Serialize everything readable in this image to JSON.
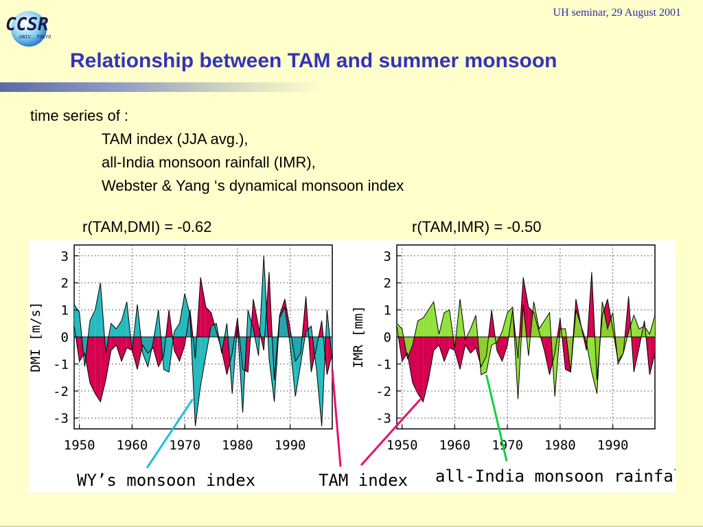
{
  "header": {
    "seminar": "UH seminar, 29 August 2001",
    "logo_text": "CCSR",
    "logo_sub": "UNIV. TOKYO"
  },
  "title": "Relationship between TAM and summer monsoon",
  "body": {
    "line1": "time series of :",
    "line2": "TAM index   (JJA avg.),",
    "line3": "all-India monsoon rainfall (IMR),",
    "line4": "Webster & Yang ‘s dynamical monsoon index"
  },
  "correlations": {
    "left": "r(TAM,DMI) = -0.62",
    "right": "r(TAM,IMR) = -0.50"
  },
  "colors": {
    "tam": "#d4004f",
    "dmi": "#14b4b8",
    "imr": "#88e02c",
    "tam_line": "#e8106a",
    "dmi_line": "#18c0dc",
    "imr_line": "#10d040",
    "title": "#3333bb"
  },
  "annotations": {
    "wy": "WY’s monsoon index",
    "tam": "TAM index",
    "imr": "all-India monsoon rainfall"
  },
  "chart_data": [
    {
      "type": "area",
      "title": "",
      "xlabel": "",
      "ylabel": "DMI [m/s]",
      "xlim": [
        1949,
        1998
      ],
      "ylim": [
        -3.4,
        3.4
      ],
      "xticks": [
        1950,
        1960,
        1970,
        1980,
        1990
      ],
      "yticks": [
        3,
        2,
        1,
        0,
        -1,
        -2,
        -3
      ],
      "grid": true,
      "x": [
        1949,
        1950,
        1951,
        1952,
        1953,
        1954,
        1955,
        1956,
        1957,
        1958,
        1959,
        1960,
        1961,
        1962,
        1963,
        1964,
        1965,
        1966,
        1967,
        1968,
        1969,
        1970,
        1971,
        1972,
        1973,
        1974,
        1975,
        1976,
        1977,
        1978,
        1979,
        1980,
        1981,
        1982,
        1983,
        1984,
        1985,
        1986,
        1987,
        1988,
        1989,
        1990,
        1991,
        1992,
        1993,
        1994,
        1995,
        1996,
        1997,
        1998
      ],
      "series": [
        {
          "name": "TAM index",
          "values": [
            0.4,
            -0.9,
            -0.6,
            -1.7,
            -2.1,
            -2.4,
            -1.6,
            -0.5,
            -0.3,
            -0.9,
            -0.4,
            -0.5,
            -1.2,
            -0.3,
            -0.6,
            -0.4,
            -1.1,
            -0.7,
            1.0,
            -0.5,
            -0.9,
            -0.3,
            1.0,
            -0.8,
            2.2,
            1.1,
            0.9,
            0.2,
            -0.5,
            -1.4,
            -0.6,
            0.7,
            -1.2,
            -1.3,
            1.4,
            0.4,
            -0.5,
            2.4,
            -1.6,
            0.8,
            1.4,
            0.3,
            -0.9,
            -0.6,
            1.5,
            -1.3,
            -0.4,
            0.6,
            -1.4,
            -0.6
          ]
        },
        {
          "name": "DMI",
          "values": [
            1.2,
            0.9,
            -1.1,
            0.6,
            1.0,
            2.0,
            -0.6,
            0.5,
            0.3,
            0.6,
            1.3,
            -0.5,
            1.2,
            -0.6,
            -1.1,
            -0.2,
            1.0,
            -1.2,
            -1.3,
            0.2,
            0.5,
            1.6,
            0.8,
            -3.3,
            -1.8,
            -0.7,
            0.4,
            0.5,
            -0.6,
            0.5,
            -2.1,
            0.4,
            -2.8,
            1.0,
            0.3,
            -0.7,
            3.0,
            -0.8,
            -2.4,
            0.7,
            1.1,
            -0.3,
            -2.2,
            -1.0,
            0.2,
            0.4,
            -1.2,
            -3.3,
            1.0,
            -0.9
          ]
        }
      ]
    },
    {
      "type": "area",
      "title": "",
      "xlabel": "",
      "ylabel": "IMR [mm]",
      "xlim": [
        1949,
        1998
      ],
      "ylim": [
        -3.4,
        3.4
      ],
      "xticks": [
        1950,
        1960,
        1970,
        1980,
        1990
      ],
      "yticks": [
        3,
        2,
        1,
        0,
        -1,
        -2,
        -3
      ],
      "grid": true,
      "x": [
        1949,
        1950,
        1951,
        1952,
        1953,
        1954,
        1955,
        1956,
        1957,
        1958,
        1959,
        1960,
        1961,
        1962,
        1963,
        1964,
        1965,
        1966,
        1967,
        1968,
        1969,
        1970,
        1971,
        1972,
        1973,
        1974,
        1975,
        1976,
        1977,
        1978,
        1979,
        1980,
        1981,
        1982,
        1983,
        1984,
        1985,
        1986,
        1987,
        1988,
        1989,
        1990,
        1991,
        1992,
        1993,
        1994,
        1995,
        1996,
        1997,
        1998
      ],
      "series": [
        {
          "name": "TAM index",
          "values": [
            0.4,
            -0.9,
            -0.6,
            -1.7,
            -2.1,
            -2.4,
            -1.6,
            -0.5,
            -0.3,
            -0.9,
            -0.4,
            -0.5,
            -1.2,
            -0.3,
            -0.6,
            -0.4,
            -1.1,
            -0.7,
            1.0,
            -0.5,
            -0.9,
            -0.3,
            1.0,
            -0.8,
            2.2,
            1.1,
            0.9,
            0.2,
            -0.5,
            -1.4,
            -0.6,
            0.7,
            -1.2,
            -1.3,
            1.4,
            0.4,
            -0.5,
            2.4,
            -1.6,
            0.8,
            1.4,
            0.3,
            -0.9,
            -0.6,
            1.5,
            -1.3,
            -0.4,
            0.6,
            -1.4,
            -0.6
          ]
        },
        {
          "name": "IMR",
          "values": [
            0.5,
            0.3,
            -0.8,
            -0.3,
            0.6,
            0.7,
            1.0,
            1.3,
            0.1,
            0.9,
            1.0,
            -0.4,
            1.4,
            -0.1,
            0.3,
            0.8,
            -1.4,
            -1.3,
            -0.3,
            -0.2,
            0.2,
            0.9,
            1.1,
            -2.3,
            1.2,
            -0.7,
            1.3,
            0.3,
            0.6,
            0.9,
            -2.2,
            0.3,
            0.3,
            -1.3,
            1.0,
            0.4,
            -0.2,
            -1.3,
            -2.1,
            1.3,
            0.3,
            0.9,
            -1.0,
            -0.6,
            0.2,
            0.8,
            0.3,
            0.4,
            0.1,
            0.8
          ]
        }
      ]
    }
  ]
}
